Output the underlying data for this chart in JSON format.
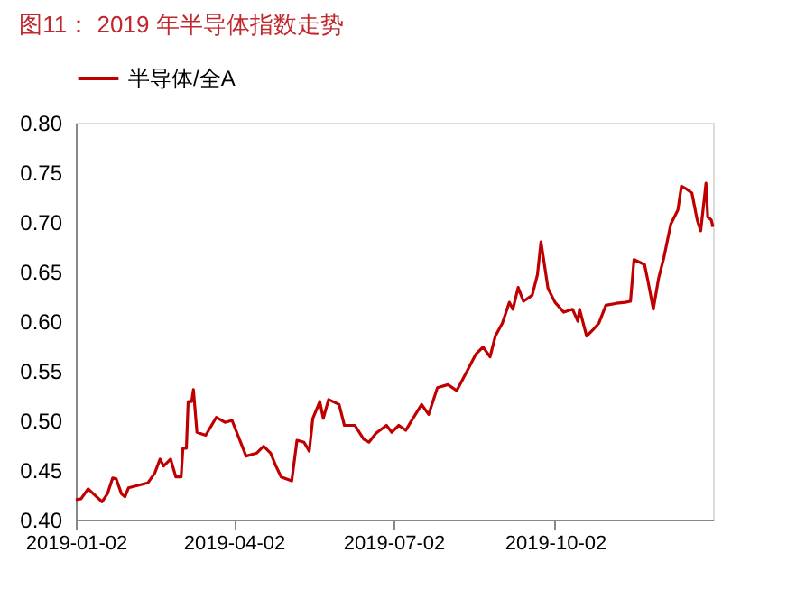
{
  "chart_data": {
    "type": "line",
    "title": "图11：  2019 年半导体指数走势",
    "x": [
      "2019-01-02",
      "2019-01-05",
      "2019-01-09",
      "2019-01-12",
      "2019-01-17",
      "2019-01-20",
      "2019-01-23",
      "2019-01-25",
      "2019-01-28",
      "2019-01-30",
      "2019-02-01",
      "2019-02-12",
      "2019-02-16",
      "2019-02-19",
      "2019-02-21",
      "2019-02-25",
      "2019-02-28",
      "2019-03-03",
      "2019-03-04",
      "2019-03-06",
      "2019-03-07",
      "2019-03-09",
      "2019-03-10",
      "2019-03-12",
      "2019-03-17",
      "2019-03-23",
      "2019-03-28",
      "2019-04-01",
      "2019-04-09",
      "2019-04-15",
      "2019-04-19",
      "2019-04-23",
      "2019-04-26",
      "2019-04-29",
      "2019-05-05",
      "2019-05-08",
      "2019-05-12",
      "2019-05-15",
      "2019-05-17",
      "2019-05-21",
      "2019-05-23",
      "2019-05-26",
      "2019-06-01",
      "2019-06-04",
      "2019-06-10",
      "2019-06-15",
      "2019-06-18",
      "2019-06-22",
      "2019-06-28",
      "2019-07-01",
      "2019-07-05",
      "2019-07-09",
      "2019-07-12",
      "2019-07-18",
      "2019-07-22",
      "2019-07-27",
      "2019-08-02",
      "2019-08-07",
      "2019-08-13",
      "2019-08-18",
      "2019-08-22",
      "2019-08-26",
      "2019-08-29",
      "2019-09-02",
      "2019-09-06",
      "2019-09-08",
      "2019-09-11",
      "2019-09-14",
      "2019-09-19",
      "2019-09-22",
      "2019-09-24",
      "2019-09-28",
      "2019-10-02",
      "2019-10-07",
      "2019-10-12",
      "2019-10-15",
      "2019-10-16",
      "2019-10-20",
      "2019-10-24",
      "2019-10-27",
      "2019-10-31",
      "2019-11-06",
      "2019-11-11",
      "2019-11-14",
      "2019-11-16",
      "2019-11-22",
      "2019-11-24",
      "2019-11-27",
      "2019-11-30",
      "2019-12-03",
      "2019-12-07",
      "2019-12-11",
      "2019-12-13",
      "2019-12-16",
      "2019-12-19",
      "2019-12-22",
      "2019-12-24",
      "2019-12-27",
      "2019-12-28",
      "2019-12-30",
      "2019-12-31"
    ],
    "series": [
      {
        "name": "半导体/全A",
        "color": "#c00000",
        "values": [
          0.42,
          0.421,
          0.431,
          0.426,
          0.418,
          0.426,
          0.442,
          0.441,
          0.426,
          0.423,
          0.432,
          0.437,
          0.447,
          0.461,
          0.454,
          0.461,
          0.443,
          0.443,
          0.472,
          0.472,
          0.519,
          0.519,
          0.531,
          0.488,
          0.485,
          0.503,
          0.498,
          0.5,
          0.464,
          0.467,
          0.474,
          0.467,
          0.454,
          0.443,
          0.439,
          0.48,
          0.478,
          0.469,
          0.502,
          0.519,
          0.502,
          0.521,
          0.516,
          0.495,
          0.495,
          0.481,
          0.478,
          0.487,
          0.495,
          0.488,
          0.495,
          0.49,
          0.499,
          0.516,
          0.506,
          0.533,
          0.536,
          0.53,
          0.55,
          0.567,
          0.574,
          0.564,
          0.585,
          0.598,
          0.619,
          0.612,
          0.634,
          0.62,
          0.626,
          0.647,
          0.68,
          0.633,
          0.619,
          0.609,
          0.612,
          0.6,
          0.612,
          0.585,
          0.592,
          0.598,
          0.616,
          0.618,
          0.619,
          0.62,
          0.662,
          0.657,
          0.64,
          0.612,
          0.643,
          0.664,
          0.698,
          0.712,
          0.736,
          0.733,
          0.729,
          0.702,
          0.691,
          0.739,
          0.705,
          0.702,
          0.695
        ]
      }
    ],
    "xlim": [
      "2019-01-02",
      "2019-12-31"
    ],
    "xticks": [
      "2019-01-02",
      "2019-04-02",
      "2019-07-02",
      "2019-10-02"
    ],
    "ylim": [
      0.4,
      0.8
    ],
    "yticks": [
      {
        "value": 0.4,
        "label": "0.40"
      },
      0.45,
      {
        "value": 0.5,
        "label": "0.50"
      },
      0.55,
      {
        "value": 0.6,
        "label": "0.60"
      },
      0.65,
      {
        "value": 0.7,
        "label": "0.70"
      },
      0.75,
      {
        "value": 0.8,
        "label": "0.80"
      }
    ],
    "legend": "top",
    "grid": false
  }
}
